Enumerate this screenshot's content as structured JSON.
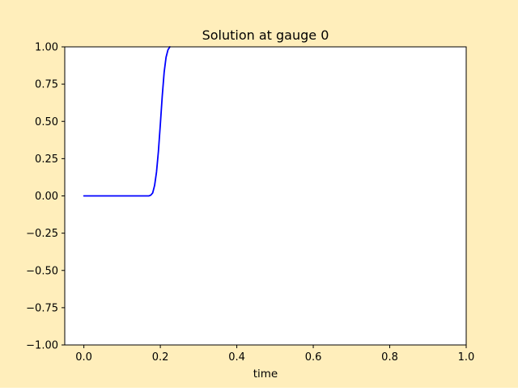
{
  "chart_data": {
    "type": "line",
    "title": "Solution at gauge 0",
    "xlabel": "time",
    "ylabel": "",
    "xlim": [
      -0.05,
      1.0
    ],
    "ylim": [
      -1.0,
      1.0
    ],
    "x_ticks": [
      "0.0",
      "0.2",
      "0.4",
      "0.6",
      "0.8",
      "1.0"
    ],
    "x_tick_values": [
      0.0,
      0.2,
      0.4,
      0.6,
      0.8,
      1.0
    ],
    "y_ticks": [
      "−1.00",
      "−0.75",
      "−0.50",
      "−0.25",
      "0.00",
      "0.25",
      "0.50",
      "0.75",
      "1.00"
    ],
    "y_tick_values": [
      -1.0,
      -0.75,
      -0.5,
      -0.25,
      0.0,
      0.25,
      0.5,
      0.75,
      1.0
    ],
    "grid": false,
    "series": [
      {
        "color": "#0000ff",
        "x": [
          0.0,
          0.02,
          0.04,
          0.06,
          0.08,
          0.1,
          0.12,
          0.14,
          0.16,
          0.17,
          0.175,
          0.18,
          0.185,
          0.19,
          0.195,
          0.2,
          0.205,
          0.21,
          0.215,
          0.22,
          0.225
        ],
        "y": [
          0.0,
          0.0,
          0.0,
          0.0,
          0.0,
          0.0,
          0.0,
          0.0,
          0.0,
          0.0,
          0.005,
          0.02,
          0.07,
          0.16,
          0.3,
          0.48,
          0.67,
          0.83,
          0.93,
          0.98,
          1.0
        ]
      }
    ]
  },
  "colors": {
    "figure_background": "#ffeebb",
    "axes_background": "#ffffff"
  }
}
